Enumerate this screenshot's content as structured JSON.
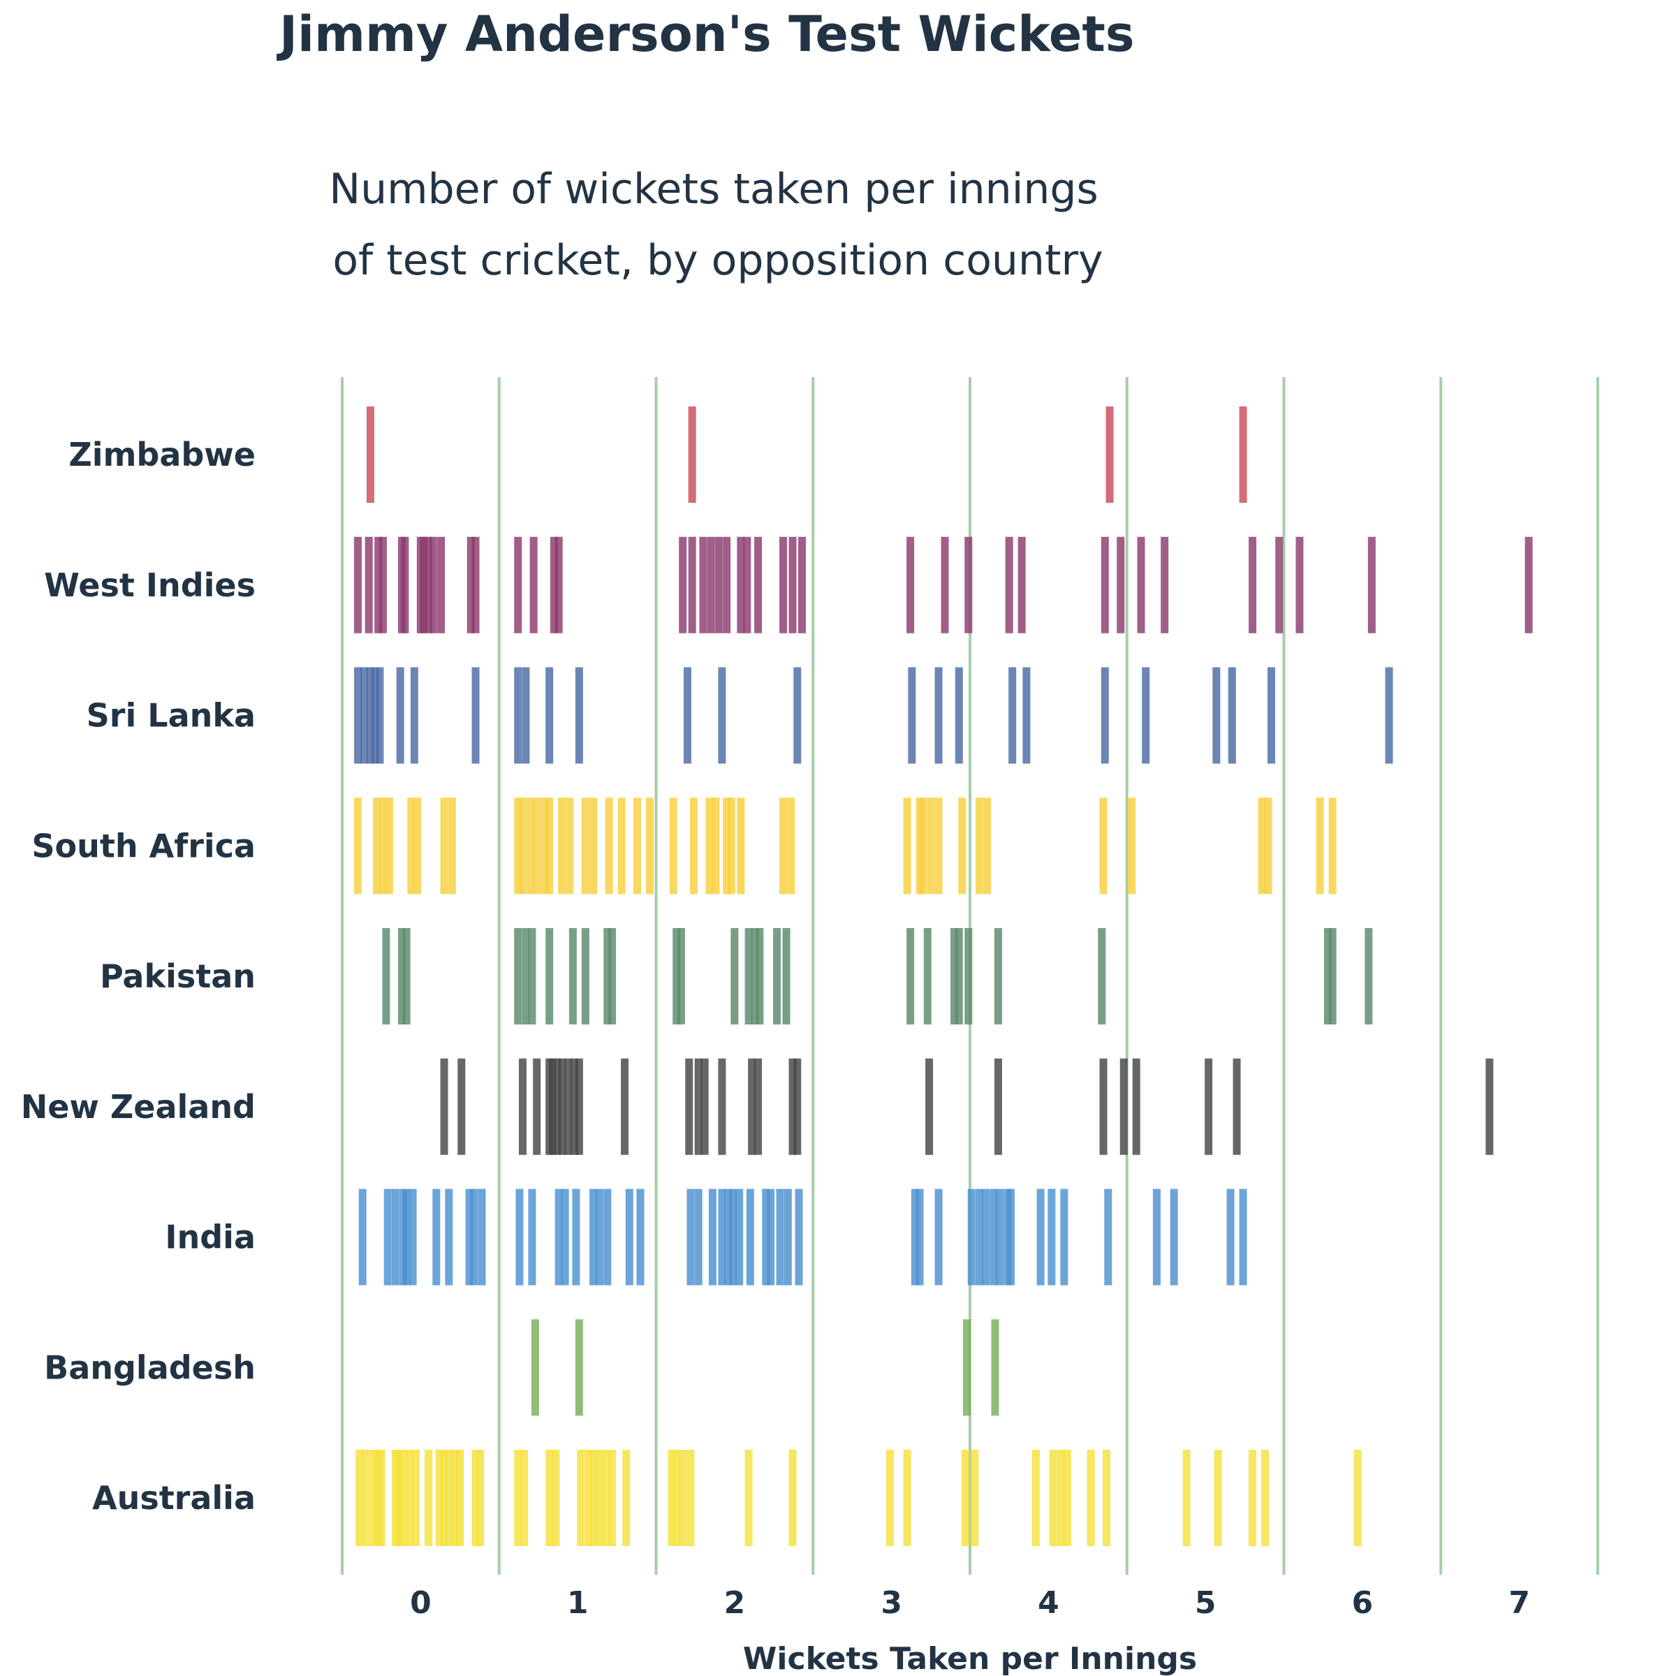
{
  "chart_data": {
    "type": "strip",
    "title": "Jimmy Anderson's Test Wickets",
    "subtitle_lines": [
      "Number of wickets taken per innings",
      "of test cricket, by opposition country"
    ],
    "xlabel": "Wickets Taken per Innings",
    "x_ticks": [
      "0",
      "1",
      "2",
      "3",
      "4",
      "5",
      "6",
      "7"
    ],
    "xlim": [
      -0.5,
      7.5
    ],
    "grid": true,
    "countries": [
      {
        "name": "Zimbabwe",
        "color": "#cc4c5c",
        "values": [
          -0.32,
          1.73,
          4.39,
          5.24
        ]
      },
      {
        "name": "West Indies",
        "color": "#8b3a6e",
        "values": [
          -0.4,
          -0.33,
          -0.27,
          -0.24,
          -0.12,
          -0.1,
          0.0,
          0.02,
          0.05,
          0.08,
          0.13,
          0.32,
          0.35,
          0.62,
          0.72,
          0.85,
          0.88,
          1.67,
          1.73,
          1.8,
          1.85,
          1.9,
          1.95,
          2.04,
          2.08,
          2.15,
          2.31,
          2.37,
          2.43,
          3.12,
          3.34,
          3.49,
          3.75,
          3.83,
          4.36,
          4.46,
          4.59,
          4.74,
          5.3,
          5.47,
          5.6,
          6.06,
          7.06
        ]
      },
      {
        "name": "Sri Lanka",
        "color": "#4a6aa5",
        "values": [
          -0.4,
          -0.36,
          -0.32,
          -0.29,
          -0.26,
          -0.13,
          -0.04,
          0.35,
          0.62,
          0.67,
          0.82,
          1.01,
          1.7,
          1.92,
          2.4,
          3.13,
          3.3,
          3.43,
          3.77,
          3.86,
          4.36,
          4.62,
          5.07,
          5.17,
          5.42,
          6.17
        ]
      },
      {
        "name": "South Africa",
        "color": "#f7d03c",
        "values": [
          -0.4,
          -0.28,
          -0.24,
          -0.2,
          -0.06,
          -0.02,
          0.15,
          0.2,
          0.62,
          0.65,
          0.7,
          0.74,
          0.79,
          0.82,
          0.9,
          0.95,
          1.05,
          1.1,
          1.2,
          1.28,
          1.38,
          1.46,
          1.61,
          1.74,
          1.84,
          1.88,
          1.95,
          1.98,
          2.04,
          2.31,
          2.36,
          3.1,
          3.18,
          3.2,
          3.25,
          3.3,
          3.45,
          3.56,
          3.61,
          4.35,
          4.53,
          5.36,
          5.4,
          5.73,
          5.81
        ]
      },
      {
        "name": "Pakistan",
        "color": "#5a8a6a",
        "values": [
          -0.22,
          -0.12,
          -0.09,
          0.62,
          0.67,
          0.71,
          0.82,
          0.97,
          1.05,
          1.19,
          1.22,
          1.63,
          1.66,
          2.0,
          2.09,
          2.13,
          2.16,
          2.27,
          2.33,
          3.12,
          3.23,
          3.4,
          3.43,
          3.49,
          3.68,
          4.34,
          5.78,
          5.81,
          6.04
        ]
      },
      {
        "name": "New Zealand",
        "color": "#454545",
        "values": [
          0.15,
          0.26,
          0.65,
          0.74,
          0.82,
          0.84,
          0.87,
          0.9,
          0.94,
          0.98,
          1.01,
          1.3,
          1.71,
          1.77,
          1.81,
          1.92,
          2.11,
          2.15,
          2.37,
          2.4,
          3.24,
          3.68,
          4.35,
          4.48,
          4.56,
          5.02,
          5.2,
          6.81
        ]
      },
      {
        "name": "India",
        "color": "#4a90d0",
        "values": [
          -0.37,
          -0.21,
          -0.16,
          -0.11,
          -0.09,
          -0.05,
          0.1,
          0.18,
          0.31,
          0.34,
          0.39,
          0.63,
          0.71,
          0.88,
          0.92,
          0.99,
          1.1,
          1.14,
          1.19,
          1.33,
          1.4,
          1.72,
          1.77,
          1.86,
          1.92,
          1.96,
          1.99,
          2.03,
          2.1,
          2.2,
          2.23,
          2.29,
          2.34,
          2.41,
          3.15,
          3.18,
          3.3,
          3.51,
          3.56,
          3.6,
          3.74,
          3.65,
          3.69,
          3.76,
          3.95,
          4.02,
          4.1,
          4.38,
          4.69,
          4.8,
          5.16,
          5.24
        ]
      },
      {
        "name": "Bangladesh",
        "color": "#7aaf5a",
        "values": [
          0.73,
          1.01,
          3.48,
          3.66
        ]
      },
      {
        "name": "Australia",
        "color": "#f5e03a",
        "values": [
          -0.39,
          -0.35,
          -0.3,
          -0.27,
          -0.25,
          -0.16,
          -0.14,
          -0.11,
          -0.07,
          -0.03,
          0.05,
          0.12,
          0.15,
          0.18,
          0.22,
          0.25,
          0.35,
          0.38,
          0.62,
          0.66,
          0.82,
          0.86,
          1.02,
          1.07,
          1.1,
          1.14,
          1.18,
          1.22,
          1.31,
          1.6,
          1.63,
          1.67,
          1.72,
          2.09,
          2.37,
          2.99,
          3.1,
          3.47,
          3.53,
          3.92,
          4.03,
          4.08,
          4.12,
          4.27,
          4.37,
          4.88,
          5.08,
          5.3,
          5.38,
          5.97
        ]
      }
    ]
  }
}
